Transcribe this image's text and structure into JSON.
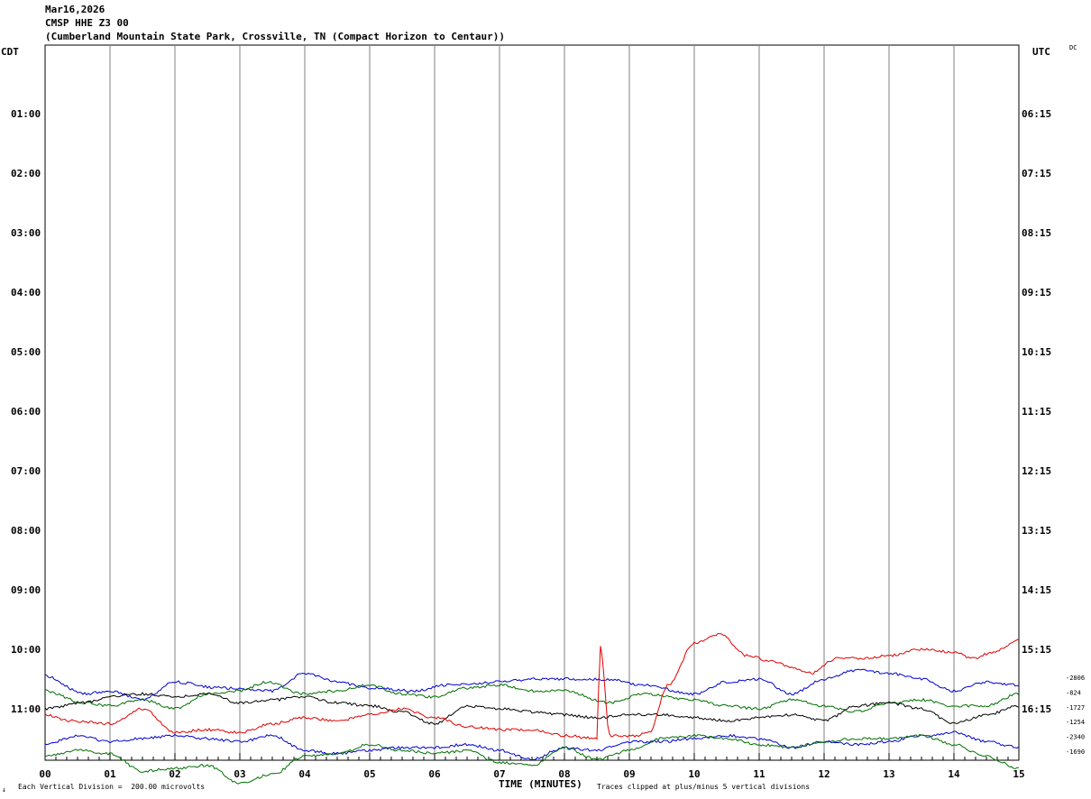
{
  "header": {
    "date": "Mar16,2026",
    "station": "CMSP HHE Z3 00",
    "location": "(Cumberland Mountain State Park, Crossville, TN (Compact Horizon to Centaur))"
  },
  "left_tz": "CDT",
  "right_tz": "UTC",
  "dc_label": "DC",
  "footer": {
    "corner_mark": "↓",
    "division_note": "Each Vertical Division =  200.00 microvolts",
    "x_title": "TIME (MINUTES)",
    "clip_note": "Traces clipped at plus/minus 5 vertical divisions"
  },
  "chart_data": {
    "type": "line",
    "title": "CMSP HHE Z3 00",
    "xlabel": "TIME (MINUTES)",
    "ylabel": "",
    "xlim": [
      0,
      15
    ],
    "x_ticks": [
      "00",
      "01",
      "02",
      "03",
      "04",
      "05",
      "06",
      "07",
      "08",
      "09",
      "10",
      "11",
      "12",
      "13",
      "14",
      "15"
    ],
    "y_rows": 12,
    "left_ticks": [
      "01:00",
      "02:00",
      "03:00",
      "04:00",
      "05:00",
      "06:00",
      "07:00",
      "08:00",
      "09:00",
      "10:00",
      "11:00"
    ],
    "right_ticks": [
      "06:15",
      "07:15",
      "08:15",
      "09:15",
      "10:15",
      "11:15",
      "12:15",
      "13:15",
      "14:15",
      "15:15",
      "16:15"
    ],
    "grid": true,
    "trace_colors": [
      "#000000",
      "#e00000",
      "#0000d0",
      "#007000"
    ],
    "offsets": [
      "-2806",
      "-824",
      "-1727",
      "-1254",
      "-2340",
      "-1690"
    ],
    "series": [
      {
        "color": "#0000d0",
        "row": 10.5,
        "points": [
          [
            0,
            0.05
          ],
          [
            0.6,
            -0.25
          ],
          [
            1.0,
            -0.2
          ],
          [
            1.5,
            -0.35
          ],
          [
            2.0,
            -0.05
          ],
          [
            2.7,
            -0.15
          ],
          [
            3.5,
            -0.2
          ],
          [
            4.0,
            0.1
          ],
          [
            4.5,
            -0.05
          ],
          [
            5.0,
            -0.15
          ],
          [
            5.7,
            -0.2
          ],
          [
            6.2,
            -0.1
          ],
          [
            7.0,
            -0.05
          ],
          [
            7.5,
            0.0
          ],
          [
            8.2,
            0.0
          ],
          [
            8.7,
            0.0
          ],
          [
            9.2,
            -0.1
          ],
          [
            10.0,
            -0.25
          ],
          [
            10.5,
            -0.05
          ],
          [
            11.0,
            0.0
          ],
          [
            11.5,
            -0.25
          ],
          [
            12.0,
            0.0
          ],
          [
            12.5,
            0.15
          ],
          [
            13.0,
            0.1
          ],
          [
            13.5,
            0.0
          ],
          [
            14.0,
            -0.2
          ],
          [
            14.5,
            -0.05
          ],
          [
            15.0,
            -0.1
          ]
        ]
      },
      {
        "color": "#007000",
        "row": 10.5,
        "points": [
          [
            0,
            -0.2
          ],
          [
            0.6,
            -0.4
          ],
          [
            1.0,
            -0.45
          ],
          [
            1.5,
            -0.35
          ],
          [
            2.0,
            -0.5
          ],
          [
            2.5,
            -0.25
          ],
          [
            3.0,
            -0.2
          ],
          [
            3.4,
            -0.05
          ],
          [
            4.0,
            -0.25
          ],
          [
            4.5,
            -0.2
          ],
          [
            5.0,
            -0.1
          ],
          [
            5.5,
            -0.25
          ],
          [
            6.0,
            -0.3
          ],
          [
            6.5,
            -0.15
          ],
          [
            7.0,
            -0.1
          ],
          [
            7.5,
            -0.2
          ],
          [
            8.0,
            -0.2
          ],
          [
            8.7,
            -0.4
          ],
          [
            9.2,
            -0.25
          ],
          [
            10.0,
            -0.35
          ],
          [
            10.5,
            -0.45
          ],
          [
            11.0,
            -0.5
          ],
          [
            11.5,
            -0.35
          ],
          [
            12.0,
            -0.45
          ],
          [
            12.5,
            -0.55
          ],
          [
            13.0,
            -0.4
          ],
          [
            13.5,
            -0.35
          ],
          [
            14.0,
            -0.45
          ],
          [
            14.5,
            -0.45
          ],
          [
            15.0,
            -0.25
          ]
        ]
      },
      {
        "color": "#000000",
        "row": 11.0,
        "points": [
          [
            0,
            0.0
          ],
          [
            0.6,
            0.1
          ],
          [
            1.0,
            0.2
          ],
          [
            1.5,
            0.25
          ],
          [
            2.0,
            0.2
          ],
          [
            2.5,
            0.25
          ],
          [
            3.0,
            0.1
          ],
          [
            3.5,
            0.15
          ],
          [
            4.0,
            0.2
          ],
          [
            4.5,
            0.1
          ],
          [
            5.0,
            0.05
          ],
          [
            5.5,
            -0.05
          ],
          [
            6.0,
            -0.25
          ],
          [
            6.5,
            0.05
          ],
          [
            7.0,
            0.0
          ],
          [
            7.5,
            -0.05
          ],
          [
            8.0,
            -0.1
          ],
          [
            8.5,
            -0.15
          ],
          [
            9.0,
            -0.1
          ],
          [
            9.5,
            -0.1
          ],
          [
            10.0,
            -0.15
          ],
          [
            10.5,
            -0.2
          ],
          [
            11.0,
            -0.15
          ],
          [
            11.5,
            -0.1
          ],
          [
            12.0,
            -0.2
          ],
          [
            12.5,
            0.05
          ],
          [
            13.0,
            0.1
          ],
          [
            13.5,
            0.0
          ],
          [
            14.0,
            -0.25
          ],
          [
            14.5,
            -0.1
          ],
          [
            15.0,
            0.05
          ]
        ]
      },
      {
        "color": "#e00000",
        "row": 11.0,
        "points": [
          [
            0,
            -0.1
          ],
          [
            0.4,
            -0.2
          ],
          [
            1.0,
            -0.25
          ],
          [
            1.5,
            0.0
          ],
          [
            2.0,
            -0.4
          ],
          [
            2.5,
            -0.35
          ],
          [
            3.0,
            -0.4
          ],
          [
            3.5,
            -0.25
          ],
          [
            4.0,
            -0.15
          ],
          [
            4.5,
            -0.2
          ],
          [
            5.0,
            -0.1
          ],
          [
            5.5,
            0.0
          ],
          [
            6.0,
            -0.15
          ],
          [
            6.5,
            -0.3
          ],
          [
            7.0,
            -0.35
          ],
          [
            7.5,
            -0.35
          ],
          [
            8.0,
            -0.45
          ],
          [
            8.5,
            -0.5
          ],
          [
            8.55,
            1.05
          ],
          [
            8.7,
            -0.45
          ],
          [
            9.1,
            -0.45
          ],
          [
            9.3,
            -0.4
          ],
          [
            9.6,
            0.4
          ],
          [
            10.0,
            1.1
          ],
          [
            10.4,
            1.25
          ],
          [
            10.8,
            0.9
          ],
          [
            11.2,
            0.8
          ],
          [
            11.5,
            0.7
          ],
          [
            11.8,
            0.6
          ],
          [
            12.2,
            0.85
          ],
          [
            12.6,
            0.85
          ],
          [
            13.0,
            0.9
          ],
          [
            13.5,
            1.0
          ],
          [
            14.0,
            0.95
          ],
          [
            14.3,
            0.85
          ],
          [
            14.6,
            0.95
          ],
          [
            15.0,
            1.15
          ]
        ]
      },
      {
        "color": "#0000d0",
        "row": 11.5,
        "points": [
          [
            0,
            -0.1
          ],
          [
            0.5,
            0.05
          ],
          [
            1.0,
            -0.05
          ],
          [
            1.5,
            0.0
          ],
          [
            2.0,
            0.05
          ],
          [
            2.5,
            0.0
          ],
          [
            3.0,
            -0.05
          ],
          [
            3.5,
            0.05
          ],
          [
            4.0,
            -0.2
          ],
          [
            4.5,
            -0.25
          ],
          [
            5.0,
            -0.2
          ],
          [
            5.5,
            -0.15
          ],
          [
            6.0,
            -0.15
          ],
          [
            6.5,
            -0.1
          ],
          [
            7.0,
            -0.2
          ],
          [
            7.5,
            -0.35
          ],
          [
            8.0,
            -0.15
          ],
          [
            8.5,
            -0.2
          ],
          [
            9.0,
            -0.05
          ],
          [
            9.5,
            -0.05
          ],
          [
            10.0,
            0.0
          ],
          [
            10.5,
            0.05
          ],
          [
            11.0,
            0.0
          ],
          [
            11.5,
            -0.15
          ],
          [
            12.0,
            -0.05
          ],
          [
            12.5,
            -0.1
          ],
          [
            13.0,
            -0.05
          ],
          [
            13.5,
            0.05
          ],
          [
            14.0,
            0.1
          ],
          [
            14.5,
            -0.05
          ],
          [
            15.0,
            -0.15
          ]
        ]
      },
      {
        "color": "#007000",
        "row": 11.8,
        "points": [
          [
            0,
            0.0
          ],
          [
            0.5,
            0.1
          ],
          [
            1.0,
            0.05
          ],
          [
            1.5,
            -0.25
          ],
          [
            2.0,
            -0.2
          ],
          [
            2.5,
            -0.15
          ],
          [
            3.0,
            -0.45
          ],
          [
            3.5,
            -0.3
          ],
          [
            4.0,
            0.0
          ],
          [
            4.5,
            0.05
          ],
          [
            5.0,
            0.2
          ],
          [
            5.5,
            0.1
          ],
          [
            6.0,
            0.05
          ],
          [
            6.5,
            0.1
          ],
          [
            7.0,
            -0.1
          ],
          [
            7.5,
            -0.15
          ],
          [
            8.0,
            0.15
          ],
          [
            8.5,
            -0.05
          ],
          [
            9.0,
            0.1
          ],
          [
            9.5,
            0.3
          ],
          [
            10.0,
            0.35
          ],
          [
            10.5,
            0.3
          ],
          [
            11.0,
            0.2
          ],
          [
            11.5,
            0.15
          ],
          [
            12.0,
            0.25
          ],
          [
            12.5,
            0.3
          ],
          [
            13.0,
            0.3
          ],
          [
            13.5,
            0.35
          ],
          [
            14.0,
            0.2
          ],
          [
            14.5,
            0.0
          ],
          [
            15.0,
            -0.2
          ]
        ]
      }
    ]
  }
}
